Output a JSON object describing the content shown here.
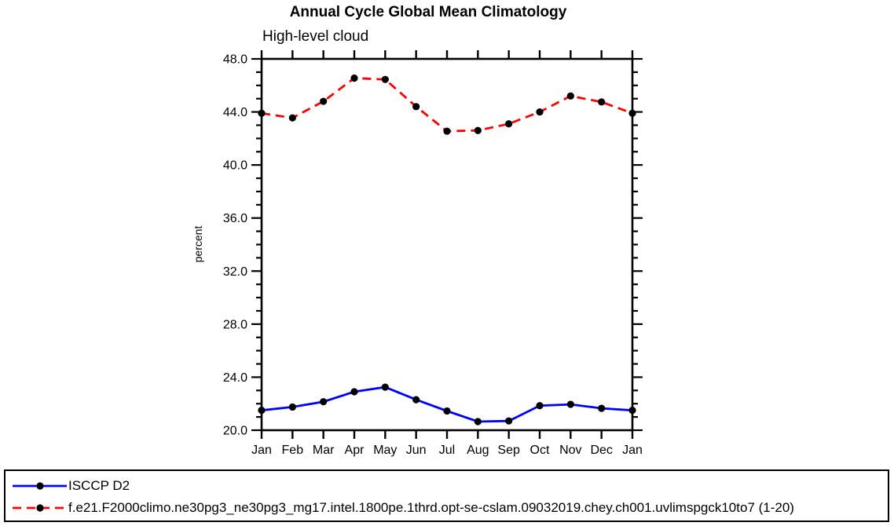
{
  "chart_data": {
    "type": "line",
    "title": "Annual Cycle Global Mean Climatology",
    "subtitle": "High-level cloud",
    "ylabel": "percent",
    "ylim": [
      20.0,
      48.0
    ],
    "ytick_step": 4,
    "yminor_step": 1,
    "grid": false,
    "legend_position": "bottom-box",
    "categories": [
      "Jan",
      "Feb",
      "Mar",
      "Apr",
      "May",
      "Jun",
      "Jul",
      "Aug",
      "Sep",
      "Oct",
      "Nov",
      "Dec",
      "Jan"
    ],
    "ytick_labels": [
      "20.0",
      "24.0",
      "28.0",
      "32.0",
      "36.0",
      "40.0",
      "44.0",
      "48.0"
    ],
    "series": [
      {
        "name": "ISCCP D2",
        "color": "#0000ff",
        "style": "solid",
        "marker": "circle",
        "marker_color": "#000000",
        "values": [
          21.5,
          21.75,
          22.15,
          22.9,
          23.25,
          22.3,
          21.45,
          20.65,
          20.7,
          21.85,
          21.95,
          21.65,
          21.5
        ]
      },
      {
        "name": "f.e21.F2000climo.ne30pg3_ne30pg3_mg17.intel.1800pe.1thrd.opt-se-cslam.09032019.chey.ch001.uvlimspgck10to7 (1-20)",
        "color": "#ff0000",
        "style": "dashed",
        "marker": "circle",
        "marker_color": "#000000",
        "values": [
          43.9,
          43.55,
          44.8,
          46.55,
          46.45,
          44.4,
          42.55,
          42.6,
          43.1,
          44.0,
          45.2,
          44.75,
          43.9
        ]
      }
    ]
  },
  "colors": {
    "axis": "#000000",
    "text": "#000000",
    "background": "#ffffff",
    "series_blue": "#0000ff",
    "series_red": "#ff0000"
  }
}
